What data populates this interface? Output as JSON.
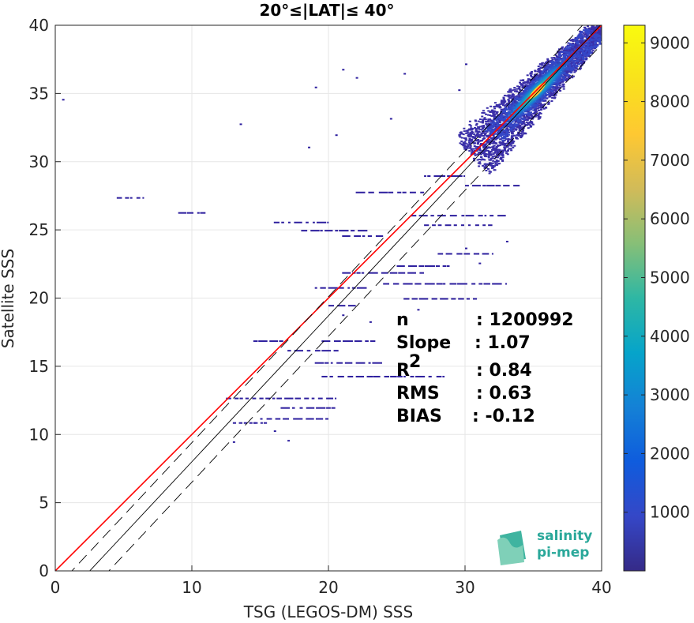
{
  "chart_data": {
    "type": "heatmap",
    "title": "20°≤|LAT|≤ 40°",
    "xlabel": "TSG (LEGOS-DM) SSS",
    "ylabel": "Satellite SSS",
    "xlim": [
      0,
      40
    ],
    "ylim": [
      0,
      40
    ],
    "xticks": [
      "0",
      "10",
      "20",
      "30",
      "40"
    ],
    "yticks": [
      "0",
      "5",
      "10",
      "15",
      "20",
      "25",
      "30",
      "35",
      "40"
    ],
    "grid": true,
    "colorbar": {
      "range": [
        0,
        9300
      ],
      "ticks": [
        "1000",
        "2000",
        "3000",
        "4000",
        "5000",
        "6000",
        "7000",
        "8000",
        "9000"
      ],
      "colormap": "parula"
    },
    "reference_lines": [
      {
        "kind": "identity",
        "slope": 1,
        "intercept": 0,
        "color": "#ff0000"
      },
      {
        "kind": "regression",
        "slope": 1.07,
        "intercept": -2.7,
        "color": "#000000",
        "style": "solid"
      },
      {
        "kind": "regression-upper",
        "slope": 1.07,
        "intercept": -1.3,
        "color": "#000000",
        "style": "dashed"
      },
      {
        "kind": "regression-lower",
        "slope": 1.07,
        "intercept": -4.2,
        "color": "#000000",
        "style": "dashed"
      }
    ],
    "density_peak": {
      "x": 35.3,
      "y": 35.2,
      "count": 9300
    },
    "stats": [
      {
        "label": "n",
        "value": ": 1200992"
      },
      {
        "label": "Slope",
        "value": ": 1.07"
      },
      {
        "label": "R",
        "sup": "2",
        "value": ": 0.84"
      },
      {
        "label": "RMS",
        "value": ": 0.63"
      },
      {
        "label": "BIAS",
        "value": ": -0.12"
      }
    ],
    "streaks": [
      {
        "x0": 4.5,
        "x1": 6.5,
        "y": 27.4
      },
      {
        "x0": 9,
        "x1": 11,
        "y": 26.3
      },
      {
        "x0": 16,
        "x1": 20,
        "y": 25.6
      },
      {
        "x0": 18,
        "x1": 23,
        "y": 25.0
      },
      {
        "x0": 21,
        "x1": 24,
        "y": 24.6
      },
      {
        "x0": 26,
        "x1": 33,
        "y": 26.1
      },
      {
        "x0": 27,
        "x1": 32,
        "y": 25.4
      },
      {
        "x0": 28,
        "x1": 32,
        "y": 23.3
      },
      {
        "x0": 25,
        "x1": 29,
        "y": 22.4
      },
      {
        "x0": 21,
        "x1": 27,
        "y": 21.9
      },
      {
        "x0": 24,
        "x1": 33,
        "y": 21.1
      },
      {
        "x0": 19,
        "x1": 23,
        "y": 20.8
      },
      {
        "x0": 25.5,
        "x1": 31,
        "y": 20.0
      },
      {
        "x0": 20,
        "x1": 22,
        "y": 19.5
      },
      {
        "x0": 14.5,
        "x1": 17,
        "y": 16.9
      },
      {
        "x0": 19.5,
        "x1": 23.5,
        "y": 16.9
      },
      {
        "x0": 17,
        "x1": 21,
        "y": 16.2
      },
      {
        "x0": 19,
        "x1": 24,
        "y": 15.3
      },
      {
        "x0": 19.5,
        "x1": 28.5,
        "y": 14.3
      },
      {
        "x0": 12.5,
        "x1": 20.5,
        "y": 12.7
      },
      {
        "x0": 16.5,
        "x1": 20.5,
        "y": 12.0
      },
      {
        "x0": 15,
        "x1": 20,
        "y": 11.2
      },
      {
        "x0": 13,
        "x1": 15.5,
        "y": 10.9
      },
      {
        "x0": 22,
        "x1": 27,
        "y": 27.8
      },
      {
        "x0": 27,
        "x1": 30,
        "y": 29.0
      },
      {
        "x0": 30,
        "x1": 34,
        "y": 28.3
      }
    ],
    "scatter": [
      {
        "x": 0.5,
        "y": 34.6
      },
      {
        "x": 19,
        "y": 35.5
      },
      {
        "x": 21,
        "y": 36.8
      },
      {
        "x": 22,
        "y": 36.2
      },
      {
        "x": 13.5,
        "y": 32.8
      },
      {
        "x": 18.5,
        "y": 31.1
      },
      {
        "x": 20.5,
        "y": 32.0
      },
      {
        "x": 24.5,
        "y": 33.2
      },
      {
        "x": 25.5,
        "y": 36.5
      },
      {
        "x": 30,
        "y": 37.2
      },
      {
        "x": 29.5,
        "y": 35.3
      },
      {
        "x": 33,
        "y": 24.2
      },
      {
        "x": 30,
        "y": 23.7
      },
      {
        "x": 31,
        "y": 22.6
      },
      {
        "x": 23,
        "y": 18.3
      },
      {
        "x": 16,
        "y": 10.3
      },
      {
        "x": 17,
        "y": 9.6
      },
      {
        "x": 13,
        "y": 9.5
      },
      {
        "x": 14.5,
        "y": 10.9
      },
      {
        "x": 21,
        "y": 18.8
      },
      {
        "x": 26.5,
        "y": 19.2
      }
    ]
  },
  "logo": {
    "line1": "salinity",
    "line2": "pi-mep"
  },
  "colors": {
    "identity": "#ff0000",
    "regression": "#000000",
    "accent": "#2aa89a"
  }
}
